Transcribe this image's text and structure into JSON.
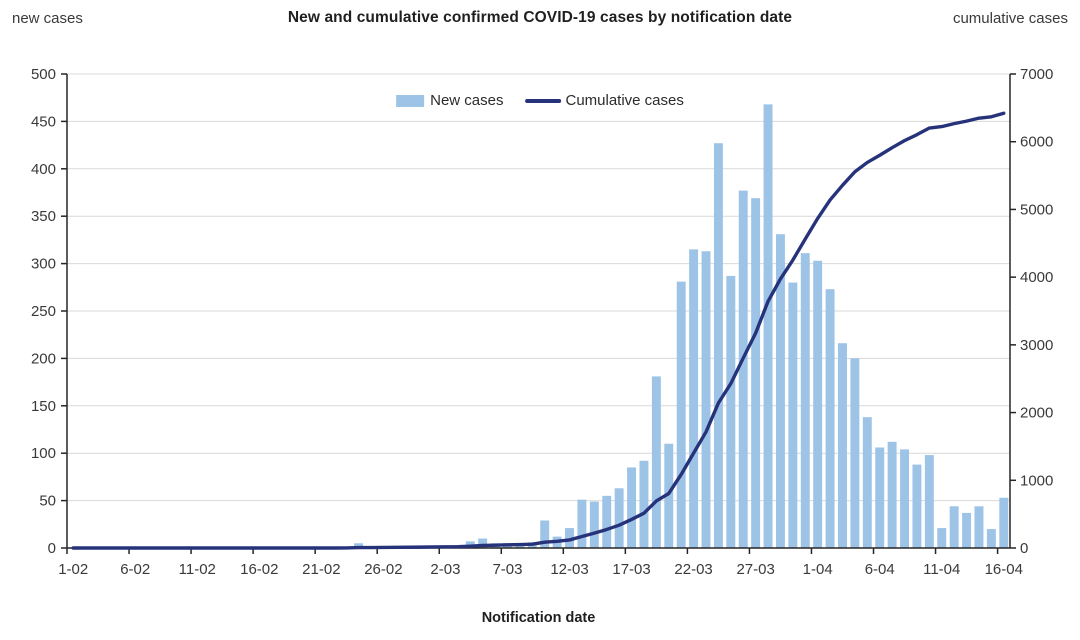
{
  "header": {
    "title": "New and cumulative confirmed COVID-19 cases by notification date",
    "left_axis_label": "new cases",
    "right_axis_label": "cumulative cases"
  },
  "legend": {
    "new_cases_label": "New cases",
    "cumulative_cases_label": "Cumulative cases"
  },
  "x_axis": {
    "label": "Notification date",
    "tick_labels": [
      "1-02",
      "6-02",
      "11-02",
      "16-02",
      "21-02",
      "26-02",
      "2-03",
      "7-03",
      "12-03",
      "17-03",
      "22-03",
      "27-03",
      "1-04",
      "6-04",
      "11-04",
      "16-04"
    ]
  },
  "y_axis_left": {
    "min": 0,
    "max": 500,
    "step": 50,
    "tick_labels": [
      "0",
      "50",
      "100",
      "150",
      "200",
      "250",
      "300",
      "350",
      "400",
      "450",
      "500"
    ]
  },
  "y_axis_right": {
    "min": 0,
    "max": 7000,
    "step": 1000,
    "tick_labels": [
      "0",
      "1000",
      "2000",
      "3000",
      "4000",
      "5000",
      "6000",
      "7000"
    ]
  },
  "colors": {
    "bar": "#9DC3E6",
    "line": "#26337B",
    "grid": "#D9D9D9",
    "axis": "#262626",
    "tick_text": "#3a3a3a"
  },
  "chart_data": {
    "type": "bar",
    "title": "New and cumulative confirmed COVID-19 cases by notification date",
    "xlabel": "Notification date",
    "ylabel_left": "new cases",
    "ylabel_right": "cumulative cases",
    "ylim_left": [
      0,
      500
    ],
    "ylim_right": [
      0,
      7000
    ],
    "grid": true,
    "legend_position": "top-center-inside",
    "categories": [
      "1-02",
      "2-02",
      "3-02",
      "4-02",
      "5-02",
      "6-02",
      "7-02",
      "8-02",
      "9-02",
      "10-02",
      "11-02",
      "12-02",
      "13-02",
      "14-02",
      "15-02",
      "16-02",
      "17-02",
      "18-02",
      "19-02",
      "20-02",
      "21-02",
      "22-02",
      "23-02",
      "24-02",
      "25-02",
      "26-02",
      "27-02",
      "28-02",
      "29-02",
      "1-03",
      "2-03",
      "3-03",
      "4-03",
      "5-03",
      "6-03",
      "7-03",
      "8-03",
      "9-03",
      "10-03",
      "11-03",
      "12-03",
      "13-03",
      "14-03",
      "15-03",
      "16-03",
      "17-03",
      "18-03",
      "19-03",
      "20-03",
      "21-03",
      "22-03",
      "23-03",
      "24-03",
      "25-03",
      "26-03",
      "27-03",
      "28-03",
      "29-03",
      "30-03",
      "31-03",
      "1-04",
      "2-04",
      "3-04",
      "4-04",
      "5-04",
      "6-04",
      "7-04",
      "8-04",
      "9-04",
      "10-04",
      "11-04",
      "12-04",
      "13-04",
      "14-04",
      "15-04",
      "16-04"
    ],
    "series": [
      {
        "name": "New cases",
        "type": "bar",
        "axis": "left",
        "values": [
          0,
          0,
          0,
          0,
          0,
          0,
          0,
          0,
          0,
          0,
          0,
          0,
          0,
          0,
          0,
          0,
          0,
          0,
          0,
          0,
          0,
          0,
          1,
          5,
          1,
          2,
          1,
          1,
          2,
          2,
          2,
          3,
          7,
          10,
          5,
          5,
          4,
          6,
          29,
          12,
          21,
          51,
          49,
          55,
          63,
          85,
          92,
          181,
          110,
          281,
          315,
          313,
          427,
          287,
          377,
          369,
          468,
          331,
          280,
          311,
          303,
          273,
          216,
          200,
          138,
          106,
          112,
          104,
          88,
          98,
          21,
          44,
          37,
          44,
          20,
          53
        ]
      },
      {
        "name": "Cumulative cases",
        "type": "line",
        "axis": "right",
        "values": [
          0,
          0,
          0,
          0,
          0,
          0,
          0,
          0,
          0,
          0,
          0,
          0,
          0,
          0,
          0,
          0,
          0,
          0,
          0,
          0,
          0,
          0,
          1,
          6,
          7,
          9,
          10,
          11,
          13,
          15,
          17,
          20,
          27,
          37,
          42,
          47,
          51,
          57,
          86,
          98,
          119,
          170,
          219,
          274,
          337,
          422,
          514,
          695,
          805,
          1086,
          1401,
          1714,
          2141,
          2428,
          2805,
          3174,
          3642,
          3973,
          4253,
          4564,
          4867,
          5140,
          5356,
          5556,
          5694,
          5800,
          5912,
          6016,
          6104,
          6202,
          6223,
          6267,
          6304,
          6348,
          6368,
          6421
        ]
      }
    ]
  }
}
